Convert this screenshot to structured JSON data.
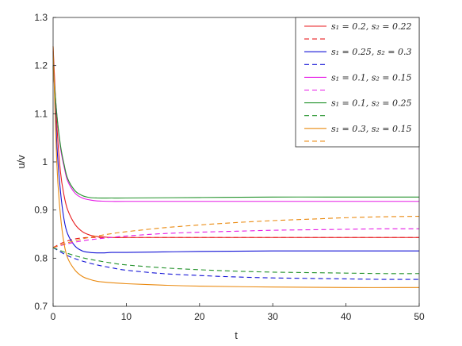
{
  "chart_data": {
    "type": "line",
    "xlabel": "t",
    "ylabel": "u/v",
    "xlim": [
      0,
      50
    ],
    "ylim": [
      0.7,
      1.3
    ],
    "xticks": [
      "0",
      "10",
      "20",
      "30",
      "40",
      "50"
    ],
    "yticks": [
      "0.7",
      "0.8",
      "0.9",
      "1",
      "1.1",
      "1.2",
      "1.3"
    ],
    "grid": false,
    "legend_position": "top-right",
    "legend": [
      {
        "label": "s₁ = 0.2, s₂ = 0.22",
        "color": "#e8191c",
        "dash": "solid"
      },
      {
        "label": "",
        "color": "#e8191c",
        "dash": "dashed"
      },
      {
        "label": "s₁ = 0.25, s₂ = 0.3",
        "color": "#1313d6",
        "dash": "solid"
      },
      {
        "label": "",
        "color": "#1313d6",
        "dash": "dashed"
      },
      {
        "label": "s₁ = 0.1, s₂ = 0.15",
        "color": "#e61be6",
        "dash": "solid"
      },
      {
        "label": "",
        "color": "#e61be6",
        "dash": "dashed"
      },
      {
        "label": "s₁ = 0.1, s₂ = 0.25",
        "color": "#23922b",
        "dash": "solid"
      },
      {
        "label": "",
        "color": "#23922b",
        "dash": "dashed"
      },
      {
        "label": "s₁ = 0.3, s₂ = 0.15",
        "color": "#ea8a10",
        "dash": "solid"
      },
      {
        "label": "",
        "color": "#ea8a10",
        "dash": "dashed"
      }
    ],
    "series": [
      {
        "color": "#e8191c",
        "dash": "solid",
        "x": [
          0,
          0.5,
          1,
          1.5,
          2,
          3,
          4,
          5,
          6,
          7,
          8,
          10,
          15,
          20,
          30,
          40,
          50
        ],
        "y": [
          1.24,
          1.08,
          0.98,
          0.93,
          0.9,
          0.87,
          0.855,
          0.848,
          0.845,
          0.844,
          0.843,
          0.843,
          0.843,
          0.843,
          0.843,
          0.843,
          0.843
        ]
      },
      {
        "color": "#e8191c",
        "dash": "dashed",
        "x": [
          0,
          1,
          2,
          3,
          4,
          5,
          6,
          8,
          10,
          15,
          20,
          30,
          40,
          50
        ],
        "y": [
          0.822,
          0.83,
          0.836,
          0.84,
          0.842,
          0.843,
          0.843,
          0.843,
          0.843,
          0.843,
          0.843,
          0.843,
          0.843,
          0.843
        ]
      },
      {
        "color": "#1313d6",
        "dash": "solid",
        "x": [
          0,
          0.5,
          1,
          1.5,
          2,
          3,
          4,
          5,
          6,
          7,
          8,
          10,
          15,
          20,
          30,
          40,
          50
        ],
        "y": [
          1.23,
          1.04,
          0.94,
          0.88,
          0.85,
          0.825,
          0.815,
          0.812,
          0.811,
          0.811,
          0.812,
          0.812,
          0.813,
          0.814,
          0.815,
          0.815,
          0.815
        ]
      },
      {
        "color": "#1313d6",
        "dash": "dashed",
        "x": [
          0,
          2,
          4,
          6,
          8,
          10,
          15,
          20,
          25,
          30,
          35,
          40,
          45,
          50
        ],
        "y": [
          0.822,
          0.805,
          0.794,
          0.786,
          0.78,
          0.775,
          0.768,
          0.764,
          0.761,
          0.759,
          0.758,
          0.757,
          0.756,
          0.756
        ]
      },
      {
        "color": "#e61be6",
        "dash": "solid",
        "x": [
          0,
          0.5,
          1,
          1.5,
          2,
          3,
          4,
          5,
          6,
          8,
          10,
          20,
          30,
          40,
          50
        ],
        "y": [
          1.2,
          1.1,
          1.03,
          0.99,
          0.96,
          0.935,
          0.925,
          0.921,
          0.919,
          0.918,
          0.918,
          0.918,
          0.918,
          0.918,
          0.918
        ]
      },
      {
        "color": "#e61be6",
        "dash": "dashed",
        "x": [
          0,
          2,
          4,
          6,
          8,
          10,
          15,
          20,
          25,
          30,
          35,
          40,
          45,
          50
        ],
        "y": [
          0.822,
          0.83,
          0.836,
          0.84,
          0.843,
          0.846,
          0.851,
          0.854,
          0.856,
          0.858,
          0.859,
          0.86,
          0.861,
          0.861
        ]
      },
      {
        "color": "#23922b",
        "dash": "solid",
        "x": [
          0,
          0.5,
          1,
          1.5,
          2,
          3,
          4,
          5,
          6,
          8,
          10,
          20,
          30,
          40,
          50
        ],
        "y": [
          1.2,
          1.1,
          1.035,
          0.995,
          0.965,
          0.94,
          0.93,
          0.926,
          0.925,
          0.925,
          0.925,
          0.926,
          0.927,
          0.927,
          0.927
        ]
      },
      {
        "color": "#23922b",
        "dash": "dashed",
        "x": [
          0,
          2,
          4,
          6,
          8,
          10,
          15,
          20,
          25,
          30,
          35,
          40,
          45,
          50
        ],
        "y": [
          0.822,
          0.81,
          0.801,
          0.795,
          0.79,
          0.786,
          0.78,
          0.776,
          0.773,
          0.771,
          0.77,
          0.769,
          0.768,
          0.768
        ]
      },
      {
        "color": "#ea8a10",
        "dash": "solid",
        "x": [
          0,
          0.5,
          1,
          1.5,
          2,
          3,
          4,
          5,
          6,
          8,
          10,
          15,
          20,
          30,
          40,
          50
        ],
        "y": [
          1.24,
          1.0,
          0.89,
          0.83,
          0.8,
          0.775,
          0.762,
          0.756,
          0.752,
          0.749,
          0.747,
          0.744,
          0.742,
          0.74,
          0.739,
          0.739
        ]
      },
      {
        "color": "#ea8a10",
        "dash": "dashed",
        "x": [
          0,
          2,
          4,
          6,
          8,
          10,
          15,
          20,
          25,
          30,
          35,
          40,
          45,
          50
        ],
        "y": [
          0.822,
          0.832,
          0.84,
          0.846,
          0.851,
          0.855,
          0.863,
          0.869,
          0.874,
          0.878,
          0.881,
          0.884,
          0.886,
          0.887
        ]
      }
    ]
  }
}
